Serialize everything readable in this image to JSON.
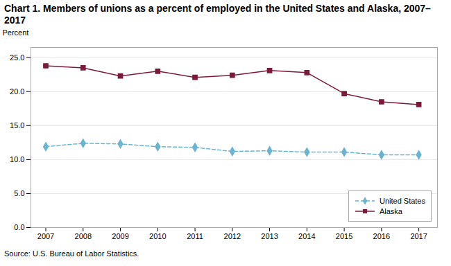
{
  "chart_data": {
    "type": "line",
    "title": "Chart 1. Members of unions as a percent of employed in the United States and Alaska, 2007–2017",
    "ylabel": "Percent",
    "source": "Source: U.S. Bureau of Labor Statistics.",
    "x": [
      2007,
      2008,
      2009,
      2010,
      2011,
      2012,
      2013,
      2014,
      2015,
      2016,
      2017
    ],
    "series": [
      {
        "name": "United States",
        "color": "#6ab4d0",
        "marker": "diamond",
        "line_style": "dashed",
        "values": [
          11.9,
          12.4,
          12.3,
          11.9,
          11.8,
          11.2,
          11.3,
          11.1,
          11.1,
          10.7,
          10.7
        ]
      },
      {
        "name": "Alaska",
        "color": "#7b1a3a",
        "marker": "square",
        "line_style": "solid",
        "values": [
          23.8,
          23.5,
          22.3,
          23.0,
          22.1,
          22.4,
          23.1,
          22.8,
          19.7,
          18.5,
          18.1
        ]
      }
    ],
    "xlim": [
      2006.6,
      2017.5
    ],
    "xticks": [
      2007,
      2008,
      2009,
      2010,
      2011,
      2012,
      2013,
      2014,
      2015,
      2016,
      2017
    ],
    "ylim": [
      0,
      26.5
    ],
    "yticks": [
      {
        "value": 0,
        "label": "0.0"
      },
      {
        "value": 5,
        "label": "5.0"
      },
      {
        "value": 10,
        "label": "10.0"
      },
      {
        "value": 15,
        "label": "15.0"
      },
      {
        "value": 20,
        "label": "20.0"
      },
      {
        "value": 25,
        "label": "25.0"
      }
    ],
    "grid": "y",
    "legend": "lower right"
  }
}
